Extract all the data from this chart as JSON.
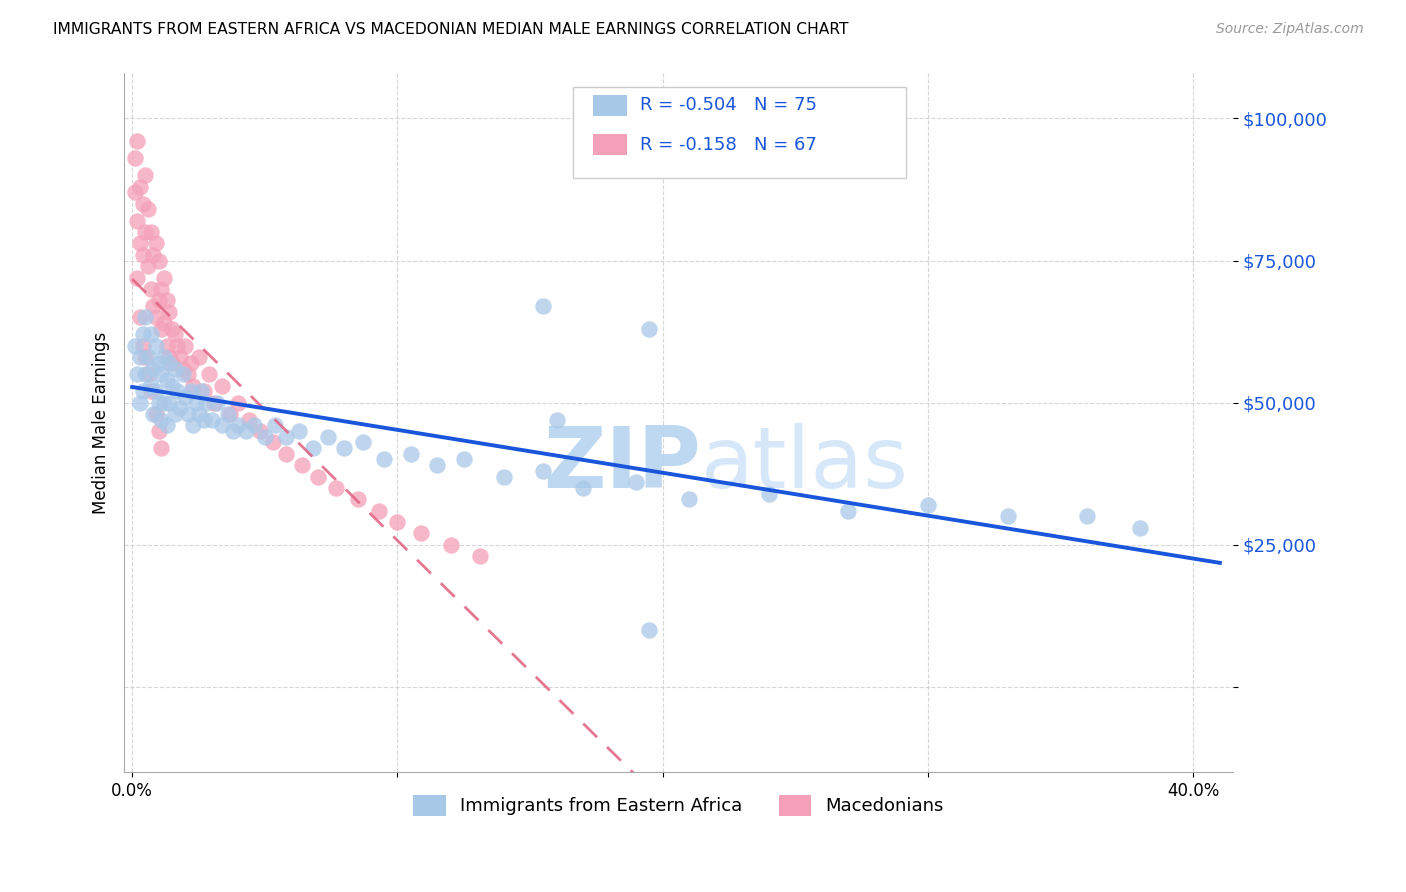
{
  "title": "IMMIGRANTS FROM EASTERN AFRICA VS MACEDONIAN MEDIAN MALE EARNINGS CORRELATION CHART",
  "source": "Source: ZipAtlas.com",
  "ylabel": "Median Male Earnings",
  "blue_R": "-0.504",
  "blue_N": "75",
  "pink_R": "-0.158",
  "pink_N": "67",
  "blue_color": "#a8c8e8",
  "pink_color": "#f4a0b8",
  "blue_line_color": "#1a56db",
  "pink_line_color": "#e06080",
  "watermark_zip": "ZIP",
  "watermark_atlas": "atlas",
  "legend_label_blue": "Immigrants from Eastern Africa",
  "legend_label_pink": "Macedonians",
  "xlim": [
    -0.003,
    0.415
  ],
  "ylim": [
    -15000,
    108000
  ],
  "blue_scatter_x": [
    0.001,
    0.002,
    0.003,
    0.003,
    0.004,
    0.004,
    0.005,
    0.005,
    0.006,
    0.007,
    0.007,
    0.008,
    0.008,
    0.009,
    0.009,
    0.01,
    0.01,
    0.011,
    0.011,
    0.012,
    0.012,
    0.013,
    0.013,
    0.014,
    0.014,
    0.015,
    0.016,
    0.016,
    0.017,
    0.018,
    0.019,
    0.02,
    0.021,
    0.022,
    0.023,
    0.024,
    0.025,
    0.026,
    0.027,
    0.028,
    0.03,
    0.032,
    0.034,
    0.036,
    0.038,
    0.04,
    0.043,
    0.046,
    0.05,
    0.054,
    0.058,
    0.063,
    0.068,
    0.074,
    0.08,
    0.087,
    0.095,
    0.105,
    0.115,
    0.125,
    0.14,
    0.155,
    0.17,
    0.19,
    0.21,
    0.24,
    0.27,
    0.3,
    0.195,
    0.155,
    0.33,
    0.36,
    0.38,
    0.16,
    0.195
  ],
  "blue_scatter_y": [
    60000,
    55000,
    58000,
    50000,
    62000,
    52000,
    65000,
    55000,
    58000,
    62000,
    53000,
    56000,
    48000,
    60000,
    52000,
    57000,
    50000,
    55000,
    47000,
    58000,
    50000,
    54000,
    46000,
    57000,
    50000,
    53000,
    56000,
    48000,
    52000,
    49000,
    55000,
    51000,
    48000,
    52000,
    46000,
    50000,
    48000,
    52000,
    47000,
    50000,
    47000,
    50000,
    46000,
    48000,
    45000,
    46000,
    45000,
    46000,
    44000,
    46000,
    44000,
    45000,
    42000,
    44000,
    42000,
    43000,
    40000,
    41000,
    39000,
    40000,
    37000,
    38000,
    35000,
    36000,
    33000,
    34000,
    31000,
    32000,
    63000,
    67000,
    30000,
    30000,
    28000,
    47000,
    10000
  ],
  "pink_scatter_x": [
    0.001,
    0.001,
    0.002,
    0.002,
    0.003,
    0.003,
    0.004,
    0.004,
    0.005,
    0.005,
    0.006,
    0.006,
    0.007,
    0.007,
    0.008,
    0.008,
    0.009,
    0.009,
    0.01,
    0.01,
    0.011,
    0.011,
    0.012,
    0.012,
    0.013,
    0.013,
    0.014,
    0.014,
    0.015,
    0.015,
    0.016,
    0.017,
    0.018,
    0.019,
    0.02,
    0.021,
    0.022,
    0.023,
    0.025,
    0.027,
    0.029,
    0.031,
    0.034,
    0.037,
    0.04,
    0.044,
    0.048,
    0.053,
    0.058,
    0.064,
    0.07,
    0.077,
    0.085,
    0.093,
    0.1,
    0.109,
    0.12,
    0.131,
    0.002,
    0.003,
    0.004,
    0.005,
    0.006,
    0.007,
    0.009,
    0.01,
    0.011
  ],
  "pink_scatter_y": [
    93000,
    87000,
    96000,
    82000,
    88000,
    78000,
    85000,
    76000,
    90000,
    80000,
    84000,
    74000,
    80000,
    70000,
    76000,
    67000,
    78000,
    65000,
    75000,
    68000,
    70000,
    63000,
    72000,
    64000,
    68000,
    60000,
    66000,
    58000,
    63000,
    57000,
    62000,
    60000,
    58000,
    56000,
    60000,
    55000,
    57000,
    53000,
    58000,
    52000,
    55000,
    50000,
    53000,
    48000,
    50000,
    47000,
    45000,
    43000,
    41000,
    39000,
    37000,
    35000,
    33000,
    31000,
    29000,
    27000,
    25000,
    23000,
    72000,
    65000,
    60000,
    58000,
    55000,
    52000,
    48000,
    45000,
    42000
  ]
}
